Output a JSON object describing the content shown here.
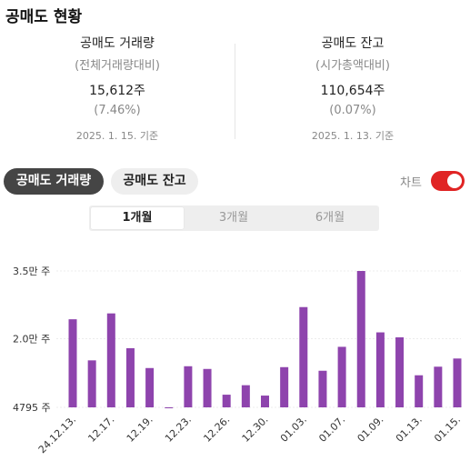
{
  "title": "공매도 현황",
  "stats": {
    "volume": {
      "name": "공매도 거래량",
      "sub": "(전체거래량대비)",
      "value": "15,612주",
      "pct": "(7.46%)",
      "date": "2025. 1. 15. 기준"
    },
    "balance": {
      "name": "공매도 잔고",
      "sub": "(시가총액대비)",
      "value": "110,654주",
      "pct": "(0.07%)",
      "date": "2025. 1. 13. 기준"
    }
  },
  "tabs": {
    "volume_label": "공매도 거래량",
    "balance_label": "공매도 잔고"
  },
  "chart_toggle": {
    "label": "차트",
    "on": true
  },
  "periods": [
    "1개월",
    "3개월",
    "6개월"
  ],
  "selected_period": "1개월",
  "colors": {
    "bar": "#8e44ad",
    "toggle_on": "#e02424",
    "active_tab": "#454545"
  },
  "chart_data": {
    "type": "bar",
    "ytick_labels": [
      "3.5만 주",
      "2.0만 주",
      "4795 주"
    ],
    "yticks": [
      35000,
      20000,
      4795
    ],
    "ylim": [
      4795,
      35000
    ],
    "xtick_labels": [
      "24.12.13.",
      "12.17.",
      "12.19.",
      "12.23.",
      "12.26.",
      "12.30.",
      "01.03.",
      "01.07.",
      "01.09.",
      "01.13.",
      "01.15."
    ],
    "values": [
      24300,
      15200,
      25600,
      17900,
      13500,
      4795,
      13900,
      13300,
      7600,
      9700,
      7400,
      13700,
      27000,
      12900,
      18200,
      35000,
      21400,
      20300,
      11900,
      13800,
      15612
    ]
  }
}
